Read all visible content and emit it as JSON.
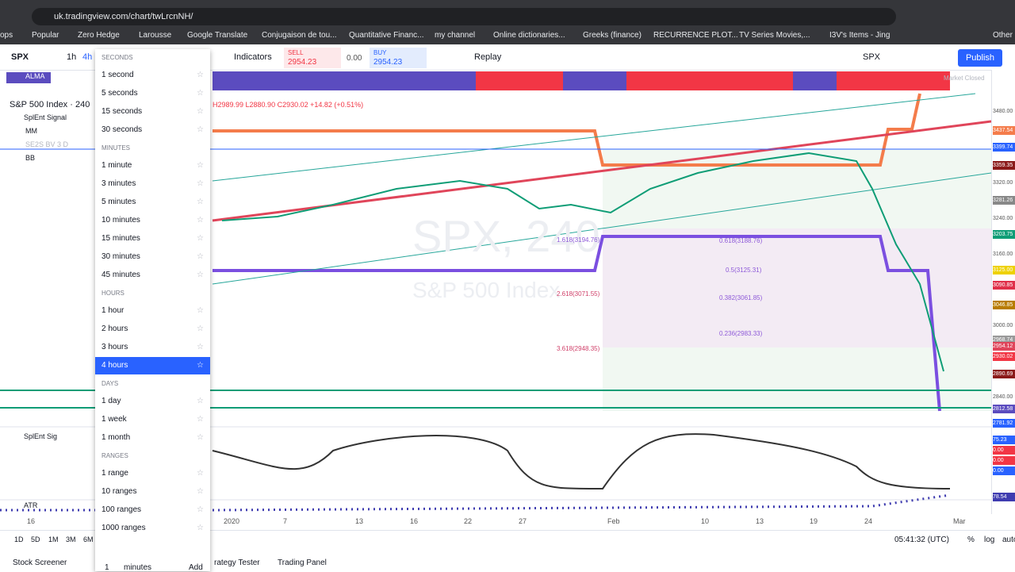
{
  "browser": {
    "url": "uk.tradingview.com/chart/twLrcnNH/",
    "bookmarks": [
      "ops",
      "Popular",
      "Zero Hedge",
      "Larousse",
      "Google Translate",
      "Conjugaison de tou...",
      "Quantitative Financ...",
      "my channel",
      "Online dictionaries...",
      "Greeks (finance)",
      "RECURRENCE PLOT...",
      "TV Series Movies,...",
      "I3V's Items - Jing",
      "Other b"
    ]
  },
  "toolbar": {
    "symbol": "SPX",
    "intervals": [
      "1h",
      "4h"
    ],
    "indicators": "Indicators",
    "sell_label": "SELL",
    "sell_price": "2954.23",
    "spread": "0.00",
    "buy_label": "BUY",
    "buy_price": "2954.23",
    "replay": "Replay",
    "symbol_right": "SPX",
    "publish": "Publish"
  },
  "interval_menu": {
    "sections": [
      {
        "title": "SECONDS",
        "items": [
          "1 second",
          "5 seconds",
          "15 seconds",
          "30 seconds"
        ]
      },
      {
        "title": "MINUTES",
        "items": [
          "1 minute",
          "3 minutes",
          "5 minutes",
          "10 minutes",
          "15 minutes",
          "30 minutes",
          "45 minutes"
        ]
      },
      {
        "title": "HOURS",
        "items": [
          "1 hour",
          "2 hours",
          "3 hours",
          "4 hours"
        ]
      },
      {
        "title": "DAYS",
        "items": [
          "1 day",
          "1 week",
          "1 month"
        ]
      },
      {
        "title": "RANGES",
        "items": [
          "1 range",
          "10 ranges",
          "100 ranges",
          "1000 ranges"
        ]
      }
    ],
    "custom_value": "1",
    "custom_unit": "minutes",
    "add": "Add"
  },
  "chart": {
    "study_top": "ALMA",
    "title": "S&P 500 Index · 240",
    "ohlc": "H2989.99 L2880.90 C2930.02 +14.82 (+0.51%)",
    "studies": [
      "SplEnt Signal",
      "MM",
      "SE2S BV 3 D",
      "BB"
    ],
    "status": "Market Closed",
    "watermark_symbol": "SPX, 240",
    "watermark_name": "S&P 500 Index",
    "fib_labels": [
      "1.618(3194.76)",
      "0.618(3188.76)",
      "0.5(3125.31)",
      "2.618(3071.55)",
      "0.382(3061.85)",
      "0.236(2983.33)",
      "3.618(2948.35)"
    ],
    "price_labels": [
      "3480.00",
      "3437.54",
      "3399.74",
      "3359.35",
      "3320.00",
      "3281.26",
      "3240.00",
      "3203.75",
      "3160.00",
      "3125.00",
      "3090.85",
      "3046.85",
      "3000.00",
      "2968.74",
      "2954.12",
      "2930.02",
      "2890.69",
      "2840.00",
      "2812.58",
      "2781.92"
    ],
    "indicator_1": "SplEnt Sig",
    "indicator_1_labels": [
      "75.23",
      "0.00",
      "0.00",
      "0.00"
    ],
    "indicator_2": "ATR",
    "indicator_2_labels": [
      "78.54"
    ],
    "time_labels": [
      "16",
      "2020",
      "7",
      "13",
      "16",
      "22",
      "27",
      "Feb",
      "10",
      "13",
      "19",
      "24",
      "Mar"
    ]
  },
  "bottom": {
    "ranges": [
      "1D",
      "5D",
      "1M",
      "3M",
      "6M"
    ],
    "clock": "05:41:32 (UTC)",
    "percent": "%",
    "log": "log",
    "auto": "auto",
    "tabs": [
      "Stock Screener",
      "rategy Tester",
      "Trading Panel"
    ]
  }
}
